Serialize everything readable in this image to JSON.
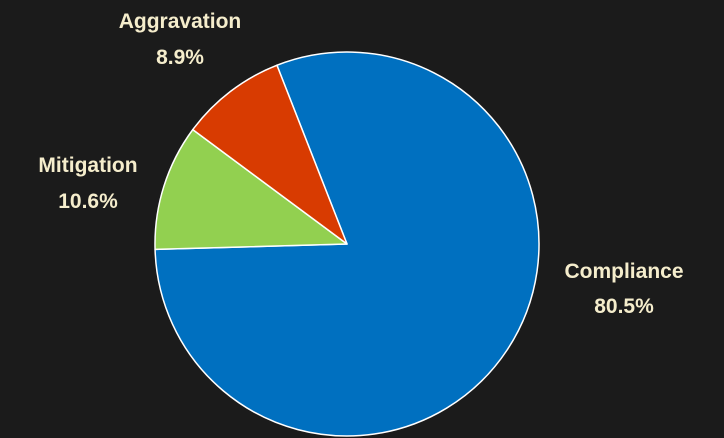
{
  "chart_data": {
    "type": "pie",
    "start_angle_deg": -21.4,
    "direction": "clockwise",
    "background": "#1b1b1b",
    "label_color": "#f5edcc",
    "slice_border_color": "#ffffff",
    "slices": [
      {
        "label": "Compliance",
        "value": 80.5,
        "value_label": "80.5%",
        "color": "#0070c0"
      },
      {
        "label": "Mitigation",
        "value": 10.6,
        "value_label": "10.6%",
        "color": "#92d050"
      },
      {
        "label": "Aggravation",
        "value": 8.9,
        "value_label": "8.9%",
        "color": "#d83b01"
      }
    ]
  }
}
